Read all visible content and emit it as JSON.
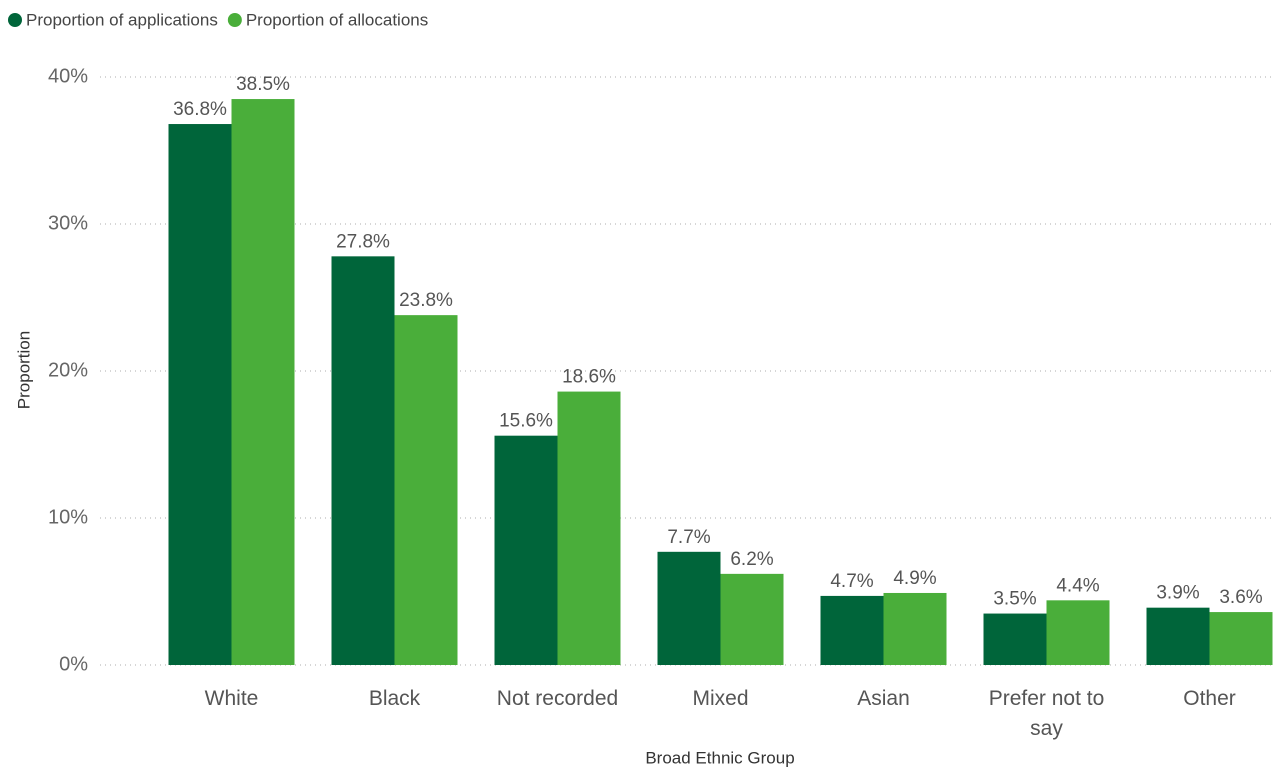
{
  "chart_data": {
    "type": "bar",
    "x_label": "Broad Ethnic Group",
    "y_label": "Proportion",
    "categories": [
      "White",
      "Black",
      "Not recorded",
      "Mixed",
      "Asian",
      "Prefer not to say",
      "Other"
    ],
    "series": [
      {
        "name": "Proportion of applications",
        "color": "#00653a",
        "values": [
          36.8,
          27.8,
          15.6,
          7.7,
          4.7,
          3.5,
          3.9
        ],
        "value_labels": [
          "36.8%",
          "27.8%",
          "15.6%",
          "7.7%",
          "4.7%",
          "3.5%",
          "3.9%"
        ]
      },
      {
        "name": "Proportion of allocations",
        "color": "#4aae3a",
        "values": [
          38.5,
          23.8,
          18.6,
          6.2,
          4.9,
          4.4,
          3.6
        ],
        "value_labels": [
          "38.5%",
          "23.8%",
          "18.6%",
          "6.2%",
          "4.9%",
          "4.4%",
          "3.6%"
        ]
      }
    ],
    "ylim": [
      0,
      40
    ],
    "yticks": [
      {
        "value": 0,
        "label": "0%"
      },
      {
        "value": 10,
        "label": "10%"
      },
      {
        "value": 20,
        "label": "20%"
      },
      {
        "value": 30,
        "label": "30%"
      },
      {
        "value": 40,
        "label": "40%"
      }
    ],
    "grid": true,
    "legend": "top-left"
  }
}
